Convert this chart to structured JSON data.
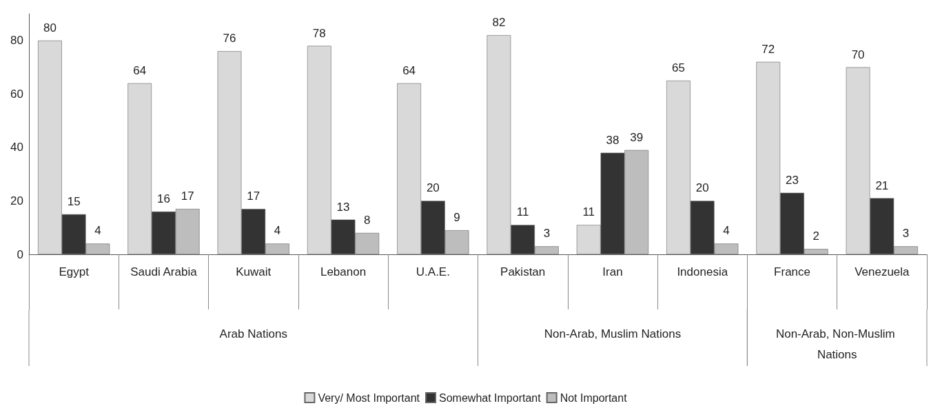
{
  "chart_data": {
    "type": "bar",
    "categories": [
      "Egypt",
      "Saudi Arabia",
      "Kuwait",
      "Lebanon",
      "U.A.E.",
      "Pakistan",
      "Iran",
      "Indonesia",
      "France",
      "Venezuela"
    ],
    "series": [
      {
        "name": "Very/ Most Important",
        "color": "#d9d9d9",
        "values": [
          80,
          64,
          76,
          78,
          64,
          82,
          11,
          65,
          72,
          70
        ]
      },
      {
        "name": "Somewhat Important",
        "color": "#333333",
        "values": [
          15,
          16,
          17,
          13,
          20,
          11,
          38,
          20,
          23,
          21
        ]
      },
      {
        "name": "Not Important",
        "color": "#bdbdbd",
        "values": [
          4,
          17,
          4,
          8,
          9,
          3,
          39,
          4,
          2,
          3
        ]
      }
    ],
    "annotations": [
      "Arab Nations",
      "Non-Arab, Muslim Nations",
      "Non-Arab, Non-Muslim Nations"
    ],
    "ylim": [
      0,
      90
    ],
    "yticks": [
      0,
      20,
      40,
      60,
      80
    ],
    "grid": false,
    "legend": "bottom",
    "data_labels": true
  }
}
